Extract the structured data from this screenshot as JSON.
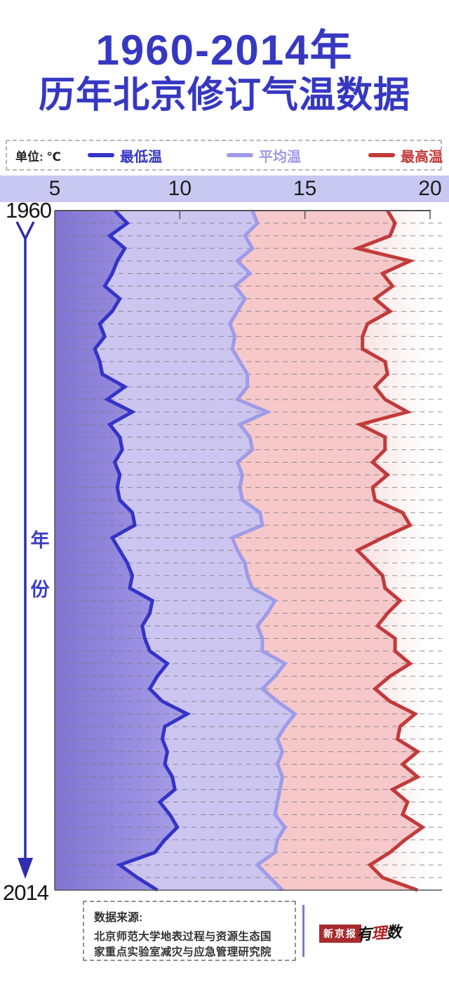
{
  "title": {
    "line1": "1960-2014年",
    "line2": "历年北京修订气温数据"
  },
  "legend": {
    "unit_label": "单位: ℃",
    "entries": [
      {
        "label": "最低温",
        "color": "#3434c8"
      },
      {
        "label": "平均温",
        "color": "#9e9be8"
      },
      {
        "label": "最高温",
        "color": "#c23a3a"
      }
    ]
  },
  "axis": {
    "value_ticks": [
      "5",
      "10",
      "15",
      "20"
    ],
    "value_tick_numbers": [
      5,
      10,
      15,
      20
    ],
    "year_start_label": "1960",
    "year_end_label": "2014",
    "year_axis_title_chars": [
      "年",
      "份"
    ]
  },
  "footer": {
    "source_title": "数据来源:",
    "source_line1": "北京师范大学地表过程与资源生态国",
    "source_line2": "家重点实验室减灾与应急管理研究院",
    "logo1": "新京报",
    "logo2_chars": [
      "有",
      "理",
      "数"
    ]
  },
  "chart_data": {
    "type": "line",
    "title": "1960-2014年 历年北京修订气温数据",
    "orientation": "years-vertical-values-horizontal",
    "value_axis": {
      "unit": "℃",
      "min": 5,
      "max": 20,
      "ticks": [
        5,
        10,
        15,
        20
      ],
      "position": "top"
    },
    "year_axis": {
      "start": 1960,
      "end": 2014,
      "label": "年份",
      "direction": "downward"
    },
    "grid": "dashed-horizontal-per-year",
    "legend_position": "top",
    "x": [
      1960,
      1961,
      1962,
      1963,
      1964,
      1965,
      1966,
      1967,
      1968,
      1969,
      1970,
      1971,
      1972,
      1973,
      1974,
      1975,
      1976,
      1977,
      1978,
      1979,
      1980,
      1981,
      1982,
      1983,
      1984,
      1985,
      1986,
      1987,
      1988,
      1989,
      1990,
      1991,
      1992,
      1993,
      1994,
      1995,
      1996,
      1997,
      1998,
      1999,
      2000,
      2001,
      2002,
      2003,
      2004,
      2005,
      2006,
      2007,
      2008,
      2009,
      2010,
      2011,
      2012,
      2013,
      2014
    ],
    "series": [
      {
        "name": "最低温",
        "color": "#3434c8",
        "values": [
          7.4,
          7.9,
          7.2,
          7.8,
          7.5,
          7.3,
          7.0,
          7.6,
          7.3,
          6.8,
          7.0,
          6.6,
          6.8,
          6.9,
          7.8,
          7.1,
          8.1,
          7.2,
          7.6,
          7.7,
          7.4,
          7.6,
          7.5,
          7.6,
          8.1,
          8.2,
          7.3,
          7.6,
          7.9,
          8.1,
          8.0,
          8.9,
          8.8,
          8.5,
          8.6,
          8.8,
          9.5,
          9.1,
          8.8,
          9.3,
          10.3,
          9.4,
          9.3,
          9.5,
          9.4,
          9.7,
          9.8,
          9.2,
          9.6,
          9.9,
          9.4,
          9.0,
          7.6,
          8.3,
          9.1
        ]
      },
      {
        "name": "平均温",
        "color": "#9e9be8",
        "values": [
          12.9,
          13.1,
          12.6,
          12.9,
          12.3,
          12.8,
          12.2,
          12.6,
          12.3,
          12.0,
          12.2,
          12.1,
          12.4,
          12.7,
          12.7,
          12.3,
          13.5,
          12.4,
          12.8,
          12.9,
          12.3,
          12.5,
          12.4,
          12.5,
          13.2,
          13.3,
          12.1,
          12.3,
          12.6,
          12.7,
          12.9,
          13.8,
          13.5,
          13.1,
          13.3,
          13.3,
          14.2,
          13.8,
          13.3,
          13.9,
          14.6,
          14.2,
          13.9,
          14.1,
          13.9,
          14.1,
          14.0,
          13.9,
          13.8,
          14.2,
          13.9,
          13.8,
          13.1,
          13.6,
          14.1
        ]
      },
      {
        "name": "最高温",
        "color": "#c23a3a",
        "values": [
          18.3,
          18.6,
          18.4,
          17.1,
          19.2,
          18.1,
          18.5,
          17.8,
          18.4,
          17.5,
          17.3,
          17.3,
          18.2,
          18.3,
          17.8,
          18.2,
          19.1,
          17.2,
          18.2,
          18.2,
          17.7,
          18.3,
          17.7,
          17.8,
          18.9,
          19.2,
          18.1,
          17.1,
          17.6,
          18.1,
          18.2,
          18.8,
          18.3,
          17.9,
          18.6,
          18.6,
          19.2,
          18.4,
          17.8,
          18.4,
          19.4,
          18.8,
          18.7,
          19.5,
          18.9,
          19.5,
          18.5,
          19.1,
          18.9,
          19.7,
          19.0,
          18.4,
          17.6,
          18.1,
          19.5
        ]
      }
    ],
    "fill_colors": {
      "left_of_min": [
        "#8174d2",
        "#a89fe8"
      ],
      "min_to_avg": "#cbc5f0",
      "avg_to_max": "#f6c8ca",
      "right_of_max": [
        "#f9e2e2",
        "#ffffff"
      ]
    }
  }
}
